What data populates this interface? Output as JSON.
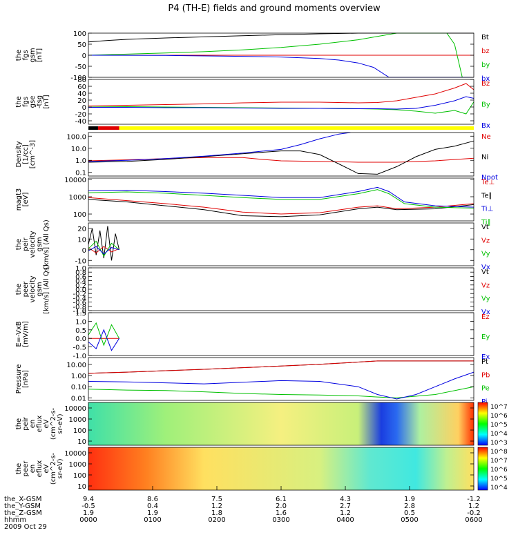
{
  "title": "P4 (TH-E) fields and ground moments overview",
  "chart_data": [
    {
      "id": "fgs-gsm",
      "type": "line",
      "ylabel": [
        "the",
        "fgs",
        "gsm",
        "[nT]"
      ],
      "ylim": [
        -100,
        100
      ],
      "yticks": [
        "100",
        "50",
        "0",
        "-50",
        "-100"
      ],
      "legend": [
        {
          "label": "Bt",
          "color": "#000000"
        },
        {
          "label": "bz",
          "color": "#e00000"
        },
        {
          "label": "by",
          "color": "#00c000"
        },
        {
          "label": "bx",
          "color": "#0000e0"
        }
      ],
      "series": [
        {
          "name": "Bt",
          "color": "#000000",
          "x": [
            0,
            0.05,
            0.1,
            0.2,
            0.3,
            0.4,
            0.5,
            0.6,
            0.7,
            0.78,
            0.8,
            0.85,
            0.9,
            0.95,
            1.0
          ],
          "y": [
            60,
            67,
            72,
            78,
            83,
            88,
            93,
            97,
            100,
            100,
            100,
            100,
            100,
            100,
            100
          ]
        },
        {
          "name": "bz",
          "color": "#e00000",
          "x": [
            0,
            0.5,
            1.0
          ],
          "y": [
            0,
            0,
            0
          ]
        },
        {
          "name": "by",
          "color": "#00c000",
          "x": [
            0,
            0.1,
            0.2,
            0.3,
            0.4,
            0.5,
            0.6,
            0.7,
            0.75,
            0.8,
            0.9,
            0.93,
            0.95,
            0.97,
            1.0
          ],
          "y": [
            0,
            5,
            10,
            16,
            24,
            35,
            50,
            70,
            85,
            100,
            100,
            100,
            50,
            -100,
            -100
          ]
        },
        {
          "name": "bx",
          "color": "#0000e0",
          "x": [
            0,
            0.2,
            0.3,
            0.4,
            0.5,
            0.6,
            0.65,
            0.7,
            0.74,
            0.78,
            0.8,
            1.0
          ],
          "y": [
            0,
            -1,
            -3,
            -5,
            -8,
            -15,
            -22,
            -35,
            -55,
            -100,
            -100,
            -100
          ]
        }
      ]
    },
    {
      "id": "fgs-gse",
      "type": "line",
      "ylabel": [
        "the",
        "fgs",
        "gse",
        "-tsg",
        "[nT]"
      ],
      "ylim": [
        -50,
        80
      ],
      "yticks": [
        "80",
        "60",
        "40",
        "20",
        "0",
        "-20",
        "-40"
      ],
      "legend": [
        {
          "label": "Bz",
          "color": "#e00000"
        },
        {
          "label": "By",
          "color": "#00c000"
        },
        {
          "label": "Bx",
          "color": "#0000e0"
        }
      ],
      "series": [
        {
          "name": "Bz",
          "color": "#e00000",
          "x": [
            0,
            0.1,
            0.2,
            0.3,
            0.4,
            0.5,
            0.6,
            0.7,
            0.75,
            0.8,
            0.85,
            0.9,
            0.95,
            0.98,
            1.0
          ],
          "y": [
            3,
            5,
            7,
            9,
            12,
            14,
            14,
            12,
            13,
            18,
            28,
            38,
            55,
            68,
            50
          ]
        },
        {
          "name": "By",
          "color": "#00c000",
          "x": [
            0,
            0.1,
            0.2,
            0.3,
            0.4,
            0.5,
            0.6,
            0.7,
            0.75,
            0.8,
            0.85,
            0.9,
            0.95,
            0.98,
            1.0
          ],
          "y": [
            0,
            1,
            0,
            -1,
            -2,
            -3,
            -4,
            -5,
            -6,
            -8,
            -12,
            -18,
            -10,
            -20,
            15
          ]
        },
        {
          "name": "Bx",
          "color": "#0000e0",
          "x": [
            0,
            0.1,
            0.2,
            0.3,
            0.4,
            0.5,
            0.6,
            0.7,
            0.75,
            0.8,
            0.85,
            0.9,
            0.95,
            0.98,
            1.0
          ],
          "y": [
            -1,
            -1,
            -2,
            -2,
            -3,
            -4,
            -4,
            -5,
            -5,
            -6,
            -4,
            5,
            18,
            30,
            25
          ]
        }
      ]
    },
    {
      "id": "density",
      "type": "line",
      "log": true,
      "ylabel": [
        "Density",
        "[1/cc]",
        "[cm^-3]"
      ],
      "ylim": [
        0.05,
        200
      ],
      "yticks": [
        "100.0",
        "10.0",
        "1.0",
        "0.1"
      ],
      "legend": [
        {
          "label": "Ne",
          "color": "#e00000"
        },
        {
          "label": "Ni",
          "color": "#000000"
        },
        {
          "label": "Npot",
          "color": "#0000e0"
        }
      ],
      "series": [
        {
          "name": "Ne",
          "color": "#e00000",
          "x": [
            0,
            0.1,
            0.2,
            0.3,
            0.4,
            0.45,
            0.5,
            0.6,
            0.7,
            0.8,
            0.9,
            1.0
          ],
          "y": [
            0.9,
            1.1,
            1.4,
            1.7,
            1.7,
            1.2,
            0.9,
            0.8,
            0.7,
            0.7,
            0.9,
            1.5
          ]
        },
        {
          "name": "Ni",
          "color": "#000000",
          "x": [
            0,
            0.1,
            0.2,
            0.3,
            0.4,
            0.5,
            0.55,
            0.6,
            0.65,
            0.7,
            0.75,
            0.8,
            0.85,
            0.9,
            0.95,
            1.0
          ],
          "y": [
            0.7,
            0.8,
            1.2,
            2,
            3.5,
            6,
            6,
            3,
            0.5,
            0.08,
            0.07,
            0.3,
            2,
            8,
            15,
            40
          ]
        },
        {
          "name": "Npot",
          "color": "#0000e0",
          "x": [
            0,
            0.1,
            0.2,
            0.3,
            0.4,
            0.5,
            0.55,
            0.6,
            0.65,
            0.68
          ],
          "y": [
            0.8,
            1,
            1.4,
            2.2,
            4,
            8,
            20,
            60,
            150,
            200
          ]
        }
      ]
    },
    {
      "id": "temperature",
      "type": "line",
      "log": true,
      "ylabel": [
        "magt3",
        "[eV]"
      ],
      "ylim": [
        40,
        12000
      ],
      "yticks": [
        "10000",
        "1000",
        "100"
      ],
      "legend": [
        {
          "label": "Te⊥",
          "color": "#e00000"
        },
        {
          "label": "Te∥",
          "color": "#000000"
        },
        {
          "label": "Ti⊥",
          "color": "#0000e0"
        },
        {
          "label": "Ti∥",
          "color": "#00c000"
        }
      ],
      "series": [
        {
          "name": "Te⊥",
          "color": "#e00000",
          "x": [
            0,
            0.1,
            0.2,
            0.3,
            0.4,
            0.5,
            0.6,
            0.7,
            0.75,
            0.8,
            0.9,
            1.0
          ],
          "y": [
            900,
            600,
            400,
            250,
            130,
            100,
            120,
            250,
            300,
            200,
            250,
            400
          ]
        },
        {
          "name": "Te∥",
          "color": "#000000",
          "x": [
            0,
            0.1,
            0.2,
            0.3,
            0.4,
            0.5,
            0.6,
            0.7,
            0.75,
            0.8,
            0.9,
            1.0
          ],
          "y": [
            700,
            500,
            300,
            180,
            80,
            70,
            90,
            200,
            250,
            180,
            200,
            350
          ]
        },
        {
          "name": "Ti⊥",
          "color": "#0000e0",
          "x": [
            0,
            0.1,
            0.2,
            0.3,
            0.4,
            0.5,
            0.6,
            0.7,
            0.75,
            0.78,
            0.82,
            0.9,
            1.0
          ],
          "y": [
            2200,
            2400,
            2000,
            1600,
            1200,
            900,
            900,
            2000,
            3500,
            2000,
            500,
            300,
            250
          ]
        },
        {
          "name": "Ti∥",
          "color": "#00c000",
          "x": [
            0,
            0.1,
            0.2,
            0.3,
            0.4,
            0.5,
            0.6,
            0.7,
            0.75,
            0.78,
            0.82,
            0.9,
            1.0
          ],
          "y": [
            1700,
            1900,
            1600,
            1200,
            900,
            700,
            700,
            1500,
            2600,
            1500,
            400,
            250,
            220
          ]
        }
      ]
    },
    {
      "id": "peir-velocity",
      "type": "line",
      "ylabel": [
        "the",
        "peir",
        "velocity",
        "gsm",
        "[km/s] (All Qs)"
      ],
      "ylim": [
        -15,
        25
      ],
      "yticks": [
        "20",
        "10",
        "0",
        "-10"
      ],
      "legend": [
        {
          "label": "Vt",
          "color": "#000000"
        },
        {
          "label": "Vz",
          "color": "#e00000"
        },
        {
          "label": "Vy",
          "color": "#00c000"
        },
        {
          "label": "Vx",
          "color": "#0000e0"
        }
      ],
      "series": [
        {
          "name": "Vt",
          "color": "#000000",
          "x": [
            0,
            0.01,
            0.02,
            0.03,
            0.04,
            0.05,
            0.06,
            0.07,
            0.08
          ],
          "y": [
            5,
            20,
            -5,
            18,
            -8,
            22,
            -10,
            15,
            0
          ]
        },
        {
          "name": "Vz",
          "color": "#e00000",
          "x": [
            0,
            0.02,
            0.04,
            0.06,
            0.08
          ],
          "y": [
            2,
            -3,
            3,
            -2,
            1
          ]
        },
        {
          "name": "Vy",
          "color": "#00c000",
          "x": [
            0,
            0.02,
            0.04,
            0.06,
            0.08
          ],
          "y": [
            1,
            8,
            -6,
            6,
            0
          ]
        },
        {
          "name": "Vx",
          "color": "#0000e0",
          "x": [
            0,
            0.02,
            0.04,
            0.06,
            0.08
          ],
          "y": [
            -1,
            3,
            -4,
            2,
            0
          ]
        }
      ]
    },
    {
      "id": "peer-velocity",
      "type": "line",
      "ylabel": [
        "the",
        "peer",
        "velocity",
        "gsm",
        "[km/s] (All Qs)"
      ],
      "ylim": [
        -1,
        1
      ],
      "yticks": [
        "1.0",
        "0.8",
        "0.6",
        "0.4",
        "0.2",
        "0.0",
        "-0.2",
        "-0.4",
        "-0.6",
        "-0.8",
        "-1.0"
      ],
      "legend": [
        {
          "label": "Vt",
          "color": "#000000"
        },
        {
          "label": "Vz",
          "color": "#e00000"
        },
        {
          "label": "Vy",
          "color": "#00c000"
        },
        {
          "label": "Vx",
          "color": "#0000e0"
        }
      ],
      "series": []
    },
    {
      "id": "e-vxb",
      "type": "line",
      "ylabel": [
        "E=-VxB",
        "[mV/m]"
      ],
      "ylim": [
        -1,
        1.5
      ],
      "yticks": [
        "1.5",
        "1.0",
        "0.5",
        "0.0",
        "-0.5",
        "-1.0"
      ],
      "legend": [
        {
          "label": "Ez",
          "color": "#e00000"
        },
        {
          "label": "Ey",
          "color": "#00c000"
        },
        {
          "label": "Ex",
          "color": "#0000e0"
        }
      ],
      "series": [
        {
          "name": "Ez",
          "color": "#e00000",
          "x": [
            0,
            0.08
          ],
          "y": [
            0,
            0
          ]
        },
        {
          "name": "Ey",
          "color": "#00c000",
          "x": [
            0,
            0.02,
            0.04,
            0.06,
            0.08
          ],
          "y": [
            0.2,
            0.9,
            -0.4,
            0.8,
            0
          ]
        },
        {
          "name": "Ex",
          "color": "#0000e0",
          "x": [
            0,
            0.02,
            0.04,
            0.06,
            0.08
          ],
          "y": [
            -0.2,
            -0.6,
            0.5,
            -0.7,
            0
          ]
        }
      ]
    },
    {
      "id": "pressure",
      "type": "line",
      "log": true,
      "ylabel": [
        "Pressure",
        "[nPa]"
      ],
      "ylim": [
        0.006,
        40
      ],
      "yticks": [
        "10.00",
        "1.00",
        "0.10",
        "0.01"
      ],
      "legend": [
        {
          "label": "Pt",
          "color": "#000000"
        },
        {
          "label": "Pb",
          "color": "#e00000"
        },
        {
          "label": "Pe",
          "color": "#00c000"
        },
        {
          "label": "Pi",
          "color": "#0000e0"
        }
      ],
      "series": [
        {
          "name": "Pt",
          "color": "#000000",
          "x": [
            0,
            0.1,
            0.2,
            0.3,
            0.4,
            0.5,
            0.6,
            0.7,
            0.75,
            1.0
          ],
          "y": [
            1.6,
            2,
            2.7,
            3.6,
            5,
            7,
            10,
            16,
            20,
            20
          ]
        },
        {
          "name": "Pb",
          "color": "#e00000",
          "x": [
            0,
            0.1,
            0.2,
            0.3,
            0.4,
            0.5,
            0.6,
            0.7,
            0.75,
            1.0
          ],
          "y": [
            1.6,
            2,
            2.7,
            3.6,
            5,
            7,
            10,
            16,
            20,
            20
          ]
        },
        {
          "name": "Pe",
          "color": "#00c000",
          "x": [
            0,
            0.1,
            0.2,
            0.3,
            0.4,
            0.5,
            0.6,
            0.7,
            0.75,
            0.8,
            0.9,
            1.0
          ],
          "y": [
            0.06,
            0.05,
            0.045,
            0.035,
            0.025,
            0.02,
            0.018,
            0.015,
            0.012,
            0.01,
            0.02,
            0.1
          ]
        },
        {
          "name": "Pi",
          "color": "#0000e0",
          "x": [
            0,
            0.1,
            0.2,
            0.3,
            0.4,
            0.5,
            0.6,
            0.7,
            0.75,
            0.8,
            0.85,
            0.9,
            0.95,
            1.0
          ],
          "y": [
            0.3,
            0.27,
            0.22,
            0.18,
            0.25,
            0.35,
            0.3,
            0.1,
            0.02,
            0.008,
            0.02,
            0.1,
            0.5,
            2
          ]
        }
      ]
    },
    {
      "id": "peir-spectrogram",
      "type": "heatmap",
      "ylabel": [
        "the",
        "peir",
        "en",
        "eflux",
        "eV",
        "(cm^2-s-",
        "sr-eV)"
      ],
      "yticks": [
        "10000",
        "1000",
        "100",
        "10"
      ],
      "cbticks": [
        "10^7",
        "10^6",
        "10^5",
        "10^4",
        "10^3"
      ]
    },
    {
      "id": "peer-spectrogram",
      "type": "heatmap",
      "ylabel": [
        "the",
        "peer",
        "en",
        "eflux",
        "eV",
        "(cm^2-s-",
        "sr-eV)"
      ],
      "yticks": [
        "10000",
        "1000",
        "100",
        "10"
      ],
      "cbticks": [
        "10^8",
        "10^7",
        "10^6",
        "10^5",
        "10^4"
      ]
    }
  ],
  "xaxis": {
    "rows": [
      {
        "label": "the_X-GSM",
        "values": [
          "9.4",
          "8.6",
          "7.5",
          "6.1",
          "4.3",
          "1.9",
          "-1.2"
        ]
      },
      {
        "label": "the_Y-GSM",
        "values": [
          "-0.5",
          "0.4",
          "1.2",
          "2.0",
          "2.7",
          "2.8",
          "1.2"
        ]
      },
      {
        "label": "the_Z-GSM",
        "values": [
          "1.9",
          "1.9",
          "1.8",
          "1.6",
          "1.2",
          "0.5",
          "-0.2"
        ]
      },
      {
        "label": "hhmm",
        "values": [
          "0000",
          "0100",
          "0200",
          "0300",
          "0400",
          "0500",
          "0600"
        ]
      }
    ],
    "date": "2009 Oct 29"
  },
  "mode_bar": {
    "segments": [
      {
        "from": 0,
        "to": 0.025,
        "color": "#000000"
      },
      {
        "from": 0.025,
        "to": 0.08,
        "color": "#e00000"
      },
      {
        "from": 0.08,
        "to": 1.0,
        "color": "#ffff00"
      }
    ]
  }
}
